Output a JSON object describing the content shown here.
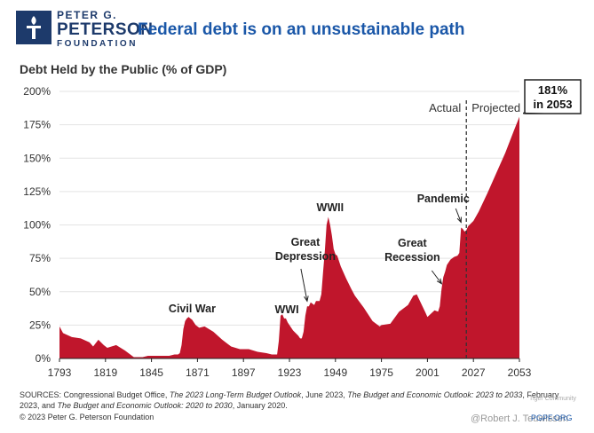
{
  "header": {
    "org_line1": "PETER G.",
    "org_line2": "PETERSON",
    "org_line3": "FOUNDATION",
    "title": "Federal debt is on an unsustainable path",
    "title_color": "#1a57a8",
    "org_color": "#1d3a6b"
  },
  "chart_data": {
    "type": "area",
    "title": "Debt Held by the Public (% of GDP)",
    "xlabel": "",
    "ylabel": "Debt Held by the Public (% of GDP)",
    "xlim": [
      1793,
      2053
    ],
    "ylim": [
      0,
      200
    ],
    "x_ticks": [
      1793,
      1819,
      1845,
      1871,
      1897,
      1923,
      1949,
      1975,
      2001,
      2027,
      2053
    ],
    "y_ticks": [
      0,
      25,
      50,
      75,
      100,
      125,
      150,
      175,
      200
    ],
    "y_tick_labels": [
      "0%",
      "25%",
      "50%",
      "75%",
      "100%",
      "125%",
      "150%",
      "175%",
      "200%"
    ],
    "grid": true,
    "fill_color": "#c0162c",
    "divider_year": 2023,
    "divider_labels": {
      "left": "Actual",
      "right": "Projected"
    },
    "series": [
      {
        "name": "Debt held by the public",
        "x": [
          1793,
          1795,
          1800,
          1805,
          1810,
          1812,
          1815,
          1818,
          1820,
          1825,
          1830,
          1835,
          1836,
          1840,
          1843,
          1846,
          1850,
          1855,
          1858,
          1860,
          1861,
          1862,
          1863,
          1864,
          1865,
          1866,
          1867,
          1868,
          1869,
          1870,
          1872,
          1875,
          1880,
          1885,
          1890,
          1895,
          1900,
          1905,
          1910,
          1913,
          1916,
          1917,
          1918,
          1919,
          1920,
          1921,
          1922,
          1923,
          1925,
          1928,
          1929,
          1930,
          1931,
          1932,
          1933,
          1934,
          1935,
          1936,
          1937,
          1938,
          1939,
          1940,
          1941,
          1942,
          1943,
          1944,
          1945,
          1946,
          1947,
          1948,
          1949,
          1950,
          1952,
          1955,
          1958,
          1960,
          1965,
          1970,
          1974,
          1975,
          1980,
          1985,
          1990,
          1993,
          1995,
          2000,
          2001,
          2005,
          2007,
          2008,
          2009,
          2010,
          2011,
          2012,
          2014,
          2016,
          2018,
          2019,
          2020,
          2021,
          2022,
          2023,
          2024,
          2027,
          2030,
          2035,
          2040,
          2045,
          2050,
          2053
        ],
        "y": [
          24,
          19,
          16,
          15,
          12,
          9,
          14,
          10,
          8,
          10,
          6,
          1,
          1,
          1,
          2,
          2,
          2,
          2,
          3,
          3,
          4,
          10,
          22,
          28,
          30,
          31,
          30,
          29,
          27,
          25,
          23,
          24,
          20,
          14,
          9,
          7,
          7,
          5,
          4,
          3,
          3,
          13,
          32,
          33,
          30,
          30,
          27,
          25,
          21,
          17,
          15,
          15,
          20,
          32,
          39,
          39,
          42,
          41,
          40,
          43,
          43,
          43,
          48,
          65,
          80,
          100,
          106,
          100,
          92,
          82,
          78,
          77,
          69,
          60,
          52,
          47,
          38,
          28,
          24,
          25,
          26,
          35,
          40,
          47,
          48,
          34,
          31,
          36,
          35,
          39,
          52,
          61,
          65,
          70,
          74,
          76,
          77,
          79,
          98,
          97,
          95,
          96,
          99,
          103,
          110,
          124,
          139,
          154,
          171,
          181
        ]
      }
    ],
    "annotations": [
      {
        "text_lines": [
          "Civil War"
        ],
        "year": 1866
      },
      {
        "text_lines": [
          "WWI"
        ],
        "year": 1919
      },
      {
        "text_lines": [
          "Great",
          "Depression"
        ],
        "year": 1933
      },
      {
        "text_lines": [
          "WWII"
        ],
        "year": 1946
      },
      {
        "text_lines": [
          "Great",
          "Recession"
        ],
        "year": 2009
      },
      {
        "text_lines": [
          "Pandemic"
        ],
        "year": 2020
      }
    ],
    "callout": {
      "line1": "181%",
      "line2": "in 2053",
      "year": 2053,
      "value": 181
    }
  },
  "footer": {
    "sources_prefix": "SOURCES: Congressional Budget Office, ",
    "source1_title": "The 2023 Long-Term Budget Outlook",
    "sources_mid1": ", June 2023, ",
    "source2_title": "The Budget and Economic Outlook: 2023 to 2033",
    "sources_mid2": ", February 2023, and ",
    "source3_title": "The Budget and Economic Outlook: 2020 to 2030",
    "sources_suffix": ", January 2020.",
    "copyright": "© 2023 Peter G. Peterson Foundation",
    "website": "PGPF.ORG",
    "watermark1": "Tiger Community",
    "watermark2": "@Robert J. Teuwissen"
  }
}
